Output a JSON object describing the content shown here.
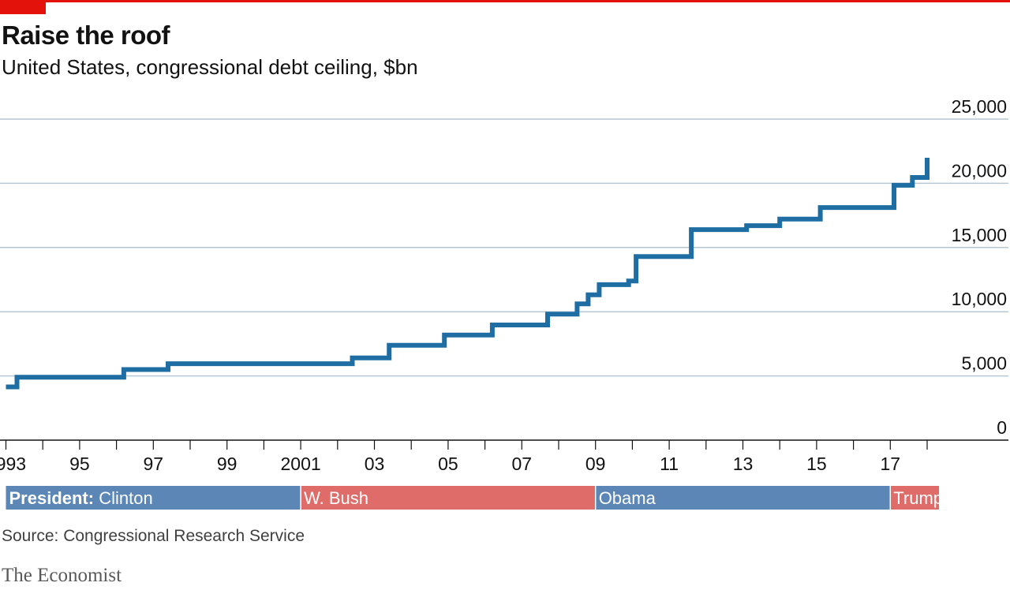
{
  "header": {
    "title": "Raise the roof",
    "subtitle": "United States, congressional debt ceiling, $bn"
  },
  "colors": {
    "brand_red": "#e3120b",
    "line": "#1f6ea3",
    "grid": "#b7c6d3",
    "democrat": "#5b86b6",
    "republican": "#e06c6a"
  },
  "chart_data": {
    "type": "line",
    "step": true,
    "ylim": [
      0,
      25000
    ],
    "yticks": [
      0,
      5000,
      10000,
      15000,
      20000,
      25000
    ],
    "ytick_labels": [
      "0",
      "5,000",
      "10,000",
      "15,000",
      "20,000",
      "25,000"
    ],
    "y_axis_side": "right",
    "grid": true,
    "xlim": [
      1993.0,
      2018.0
    ],
    "xticks": [
      1993,
      1995,
      1997,
      1999,
      2001,
      2003,
      2005,
      2007,
      2009,
      2011,
      2013,
      2015,
      2017
    ],
    "xtick_labels": [
      "1993",
      "95",
      "97",
      "99",
      "2001",
      "03",
      "05",
      "07",
      "09",
      "11",
      "13",
      "15",
      "17"
    ],
    "series": [
      {
        "x": [
          1993.0,
          1993.3,
          1993.3,
          1996.2,
          1996.2,
          1997.4,
          1997.4,
          2002.4,
          2002.4,
          2003.4,
          2003.4,
          2004.9,
          2004.9,
          2006.2,
          2006.2,
          2007.7,
          2007.7,
          2008.5,
          2008.5,
          2008.8,
          2008.8,
          2009.1,
          2009.1,
          2009.9,
          2009.9,
          2010.1,
          2010.1,
          2011.6,
          2011.6,
          2013.1,
          2013.1,
          2014.0,
          2014.0,
          2015.1,
          2015.1,
          2017.1,
          2017.1,
          2017.6,
          2017.6,
          2018.0,
          2018.0
        ],
        "y": [
          4145,
          4145,
          4900,
          4900,
          5500,
          5500,
          5950,
          5950,
          6400,
          6400,
          7384,
          7384,
          8184,
          8184,
          8965,
          8965,
          9815,
          9815,
          10615,
          10615,
          11315,
          11315,
          12104,
          12104,
          12394,
          12394,
          14294,
          14294,
          16394,
          16394,
          16699,
          16699,
          17212,
          17212,
          18113,
          18113,
          19846,
          19846,
          20456,
          20456,
          21988
        ]
      }
    ],
    "presidents": [
      {
        "label_prefix": "President:",
        "name": "Clinton",
        "start": 1993.0,
        "end": 2001.0,
        "party": "democrat"
      },
      {
        "label_prefix": "",
        "name": "W. Bush",
        "start": 2001.0,
        "end": 2009.0,
        "party": "republican"
      },
      {
        "label_prefix": "",
        "name": "Obama",
        "start": 2009.0,
        "end": 2017.0,
        "party": "democrat"
      },
      {
        "label_prefix": "",
        "name": "Trump",
        "start": 2017.0,
        "end": 2018.5,
        "party": "republican"
      }
    ]
  },
  "footer": {
    "source": "Source: Congressional Research Service",
    "logo": "The Economist"
  }
}
